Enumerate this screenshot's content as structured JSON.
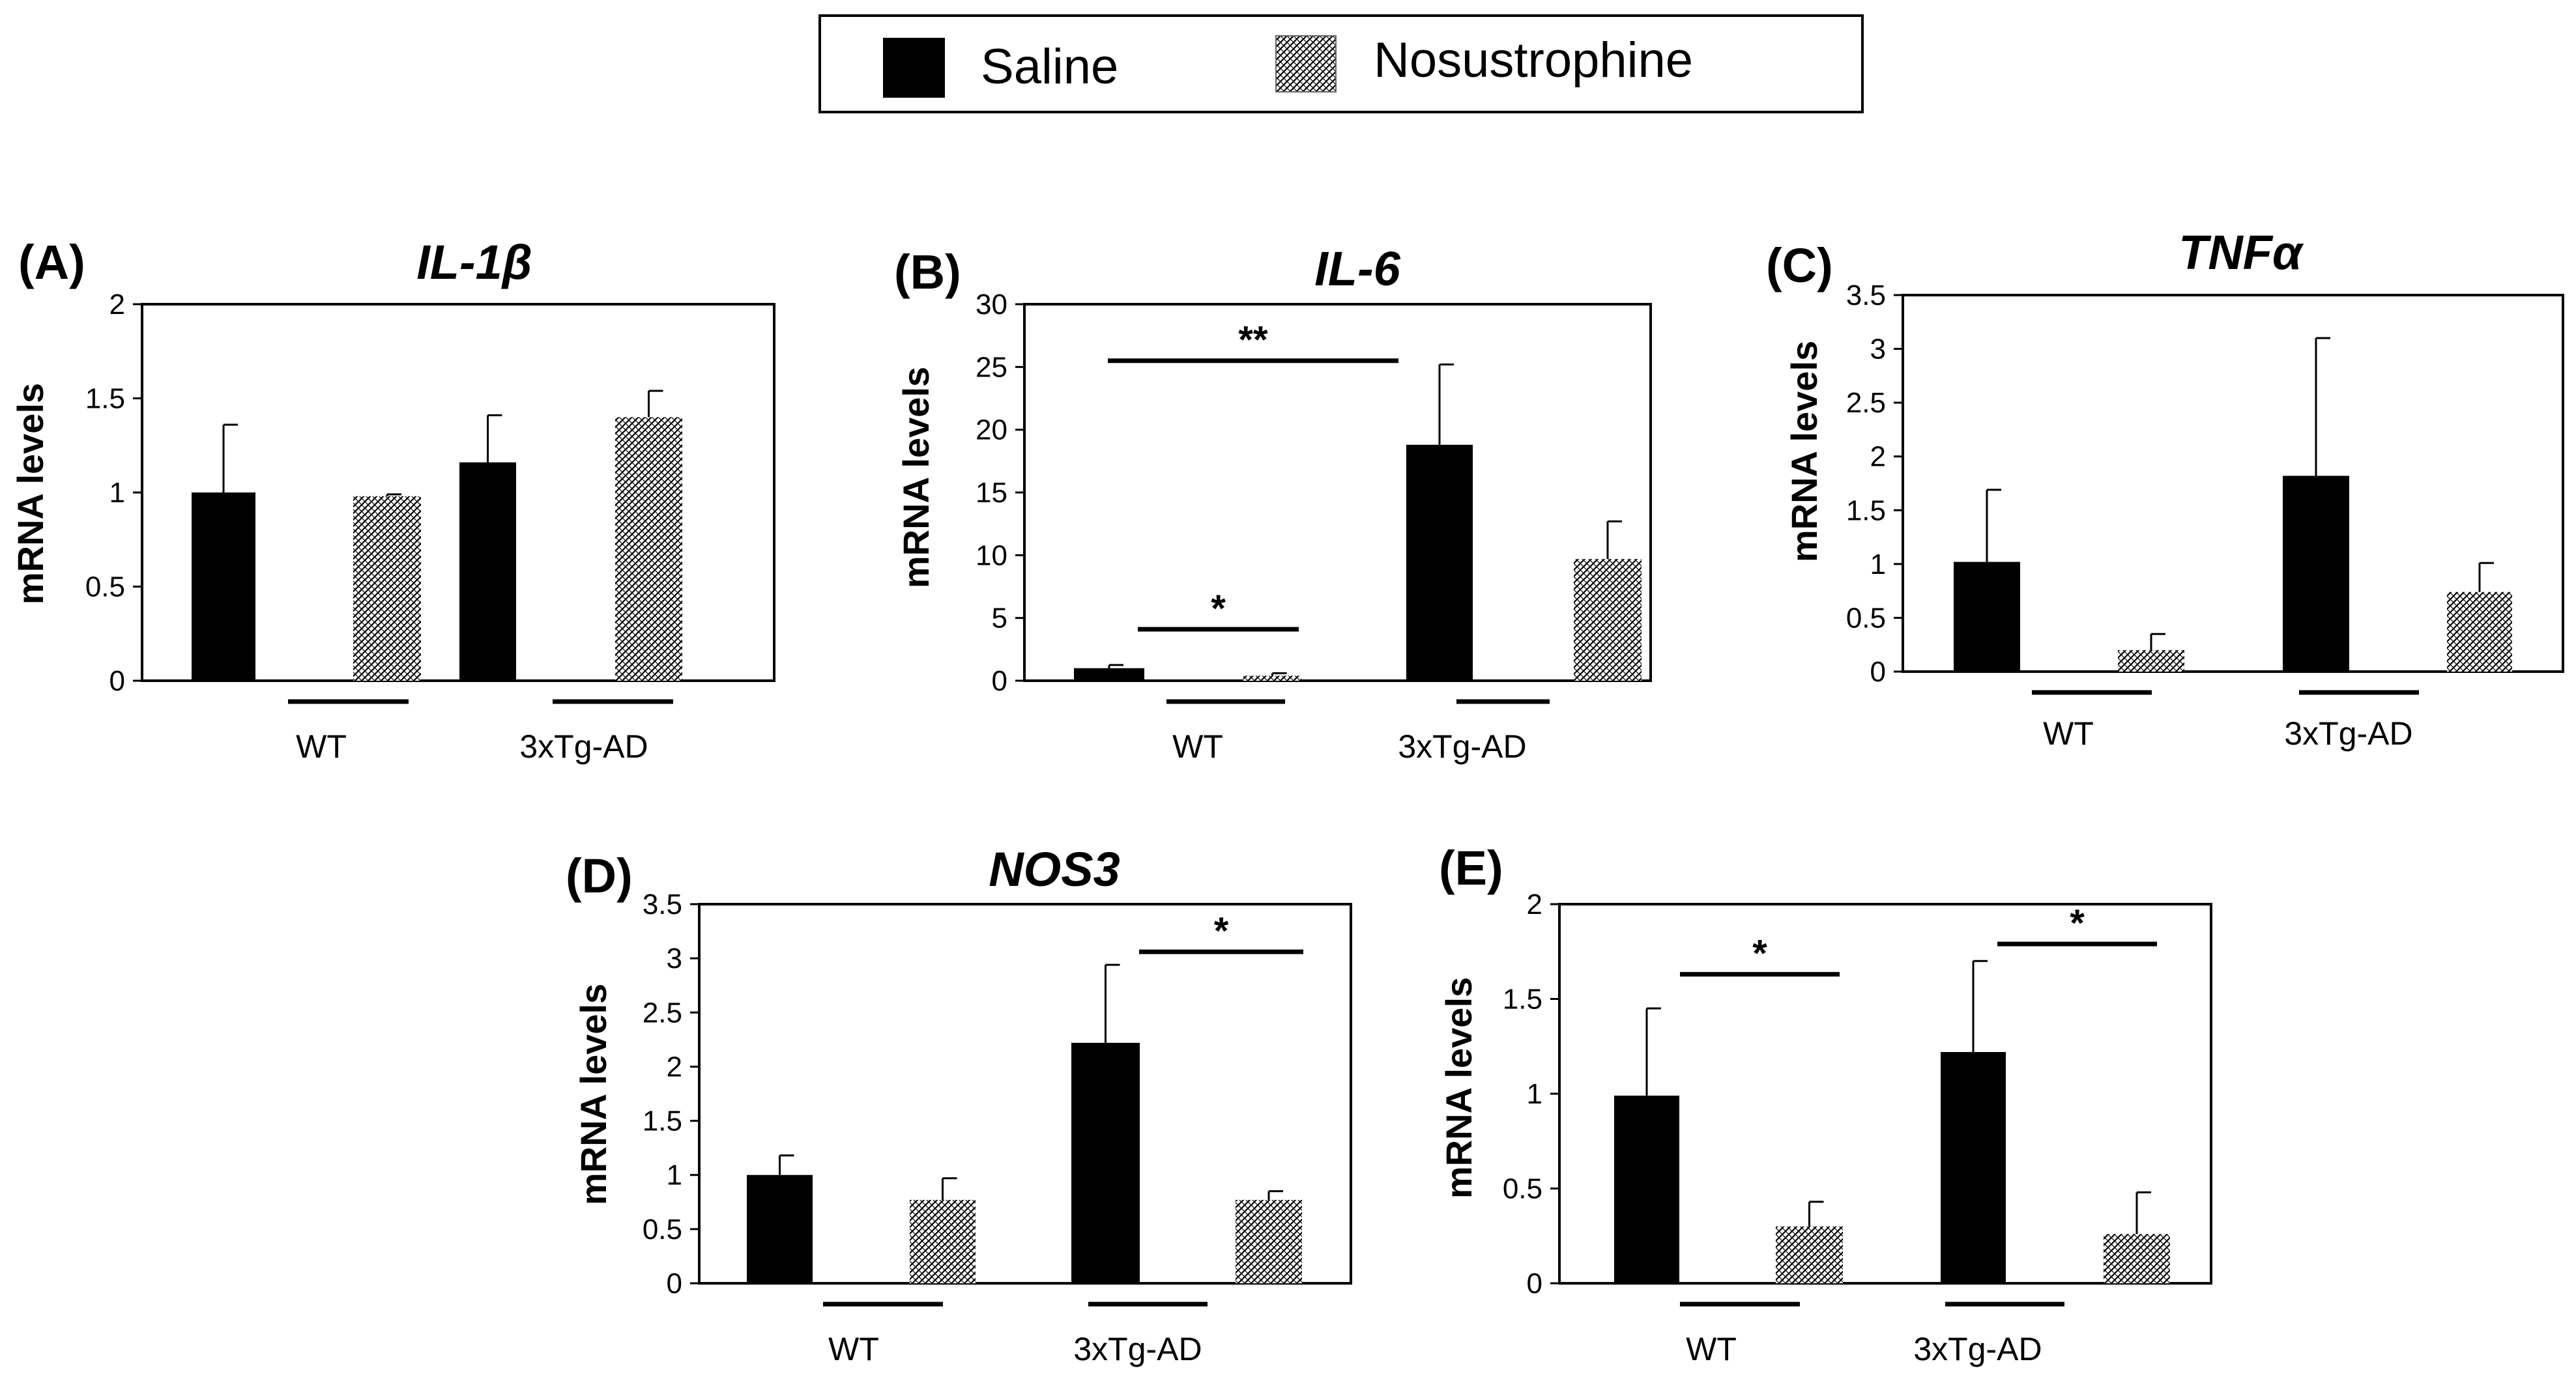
{
  "legend": {
    "items": [
      {
        "label": "Saline",
        "pattern": "solid",
        "color": "#000000"
      },
      {
        "label": "Nosustrophine",
        "pattern": "hatched",
        "color": "#000000"
      }
    ]
  },
  "styles": {
    "bar_color": "#000000",
    "hatch_color": "#000000",
    "background": "#ffffff",
    "text_color": "#000000"
  },
  "chart_data": [
    {
      "panel_label": "(A)",
      "title": "IL-1β",
      "type": "bar",
      "ylabel": "mRNA levels",
      "xlabel": "",
      "categories": [
        "WT",
        "3xTg-AD"
      ],
      "series": [
        {
          "name": "Saline",
          "values": [
            1.0,
            1.16
          ],
          "errors": [
            0.36,
            0.25
          ]
        },
        {
          "name": "Nosustrophine",
          "values": [
            0.98,
            1.4
          ],
          "errors": [
            0.01,
            0.14
          ]
        }
      ],
      "ylim": [
        0,
        2
      ],
      "yticks": [
        0,
        0.5,
        1,
        1.5,
        2
      ],
      "ytick_labels": [
        "0",
        "0.5",
        "1",
        "1.5",
        "2"
      ],
      "significance": []
    },
    {
      "panel_label": "(B)",
      "title": "IL-6",
      "type": "bar",
      "ylabel": "mRNA levels",
      "xlabel": "",
      "categories": [
        "WT",
        "3xTg-AD"
      ],
      "series": [
        {
          "name": "Saline",
          "values": [
            1.0,
            18.8
          ],
          "errors": [
            0.25,
            6.4
          ]
        },
        {
          "name": "Nosustrophine",
          "values": [
            0.4,
            9.7
          ],
          "errors": [
            0.2,
            3.0
          ]
        }
      ],
      "ylim": [
        0,
        30
      ],
      "yticks": [
        0,
        5,
        10,
        15,
        20,
        25,
        30
      ],
      "ytick_labels": [
        "0",
        "5",
        "10",
        "15",
        "20",
        "25",
        "30"
      ],
      "significance": [
        {
          "label": "**",
          "y": 25.5
        },
        {
          "label": "*",
          "y": 4.1
        }
      ]
    },
    {
      "panel_label": "(C)",
      "title": "TNFα",
      "type": "bar",
      "ylabel": "mRNA levels",
      "xlabel": "",
      "categories": [
        "WT",
        "3xTg-AD"
      ],
      "series": [
        {
          "name": "Saline",
          "values": [
            1.02,
            1.82
          ],
          "errors": [
            0.67,
            1.28
          ]
        },
        {
          "name": "Nosustrophine",
          "values": [
            0.2,
            0.74
          ],
          "errors": [
            0.15,
            0.27
          ]
        }
      ],
      "ylim": [
        0,
        3.5
      ],
      "yticks": [
        0,
        0.5,
        1,
        1.5,
        2,
        2.5,
        3,
        3.5
      ],
      "ytick_labels": [
        "0",
        "0.5",
        "1",
        "1.5",
        "2",
        "2.5",
        "3",
        "3.5"
      ],
      "significance": []
    },
    {
      "panel_label": "(D)",
      "title": "NOS3",
      "type": "bar",
      "ylabel": "mRNA levels",
      "xlabel": "",
      "categories": [
        "WT",
        "3xTg-AD"
      ],
      "series": [
        {
          "name": "Saline",
          "values": [
            1.0,
            2.22
          ],
          "errors": [
            0.18,
            0.72
          ]
        },
        {
          "name": "Nosustrophine",
          "values": [
            0.77,
            0.77
          ],
          "errors": [
            0.2,
            0.08
          ]
        }
      ],
      "ylim": [
        0,
        3.5
      ],
      "yticks": [
        0,
        0.5,
        1,
        1.5,
        2,
        2.5,
        3,
        3.5
      ],
      "ytick_labels": [
        "0",
        "0.5",
        "1",
        "1.5",
        "2",
        "2.5",
        "3",
        "3.5"
      ],
      "significance": [
        {
          "label": "*",
          "y": 3.06
        }
      ]
    },
    {
      "panel_label": "(E)",
      "title": "",
      "type": "bar",
      "ylabel": "mRNA levels",
      "xlabel": "",
      "categories": [
        "WT",
        "3xTg-AD"
      ],
      "series": [
        {
          "name": "Saline",
          "values": [
            0.99,
            1.22
          ],
          "errors": [
            0.46,
            0.48
          ]
        },
        {
          "name": "Nosustrophine",
          "values": [
            0.3,
            0.26
          ],
          "errors": [
            0.13,
            0.22
          ]
        }
      ],
      "ylim": [
        0,
        2
      ],
      "yticks": [
        0,
        0.5,
        1,
        1.5,
        2
      ],
      "ytick_labels": [
        "0",
        "0.5",
        "1",
        "1.5",
        "2"
      ],
      "significance": [
        {
          "label": "*",
          "y": 1.63
        },
        {
          "label": "*",
          "y": 1.79
        }
      ]
    }
  ]
}
